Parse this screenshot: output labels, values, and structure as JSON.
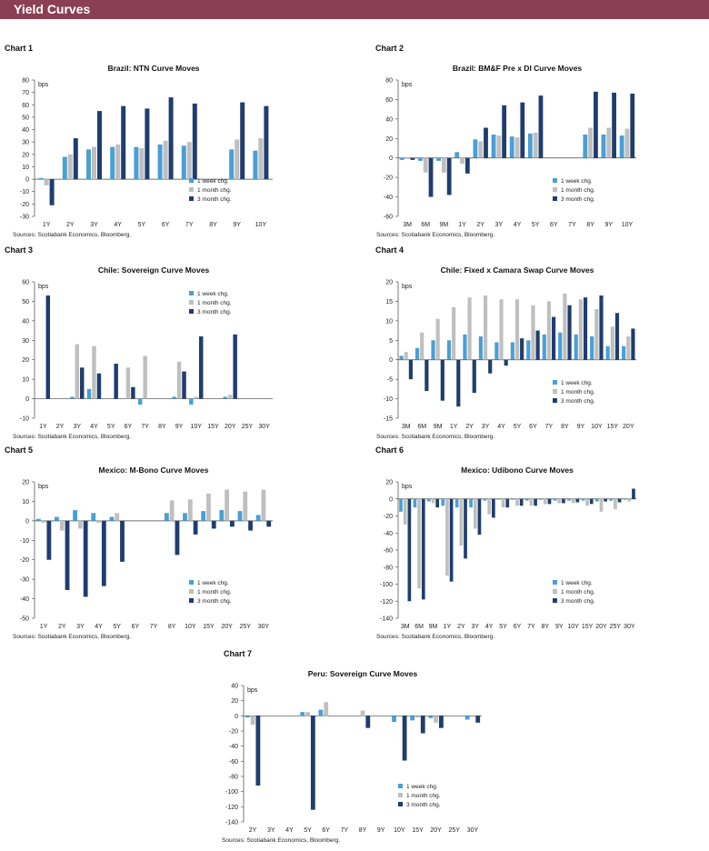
{
  "page": {
    "title": "Yield Curves"
  },
  "charts": [
    {
      "label": "Chart 1"
    },
    {
      "label": "Chart 2"
    },
    {
      "label": "Chart 3"
    },
    {
      "label": "Chart 4"
    },
    {
      "label": "Chart 5"
    },
    {
      "label": "Chart 6"
    },
    {
      "label": "Chart 7"
    }
  ],
  "colors": {
    "week": "#4a9fd4",
    "month": "#bfbfbf",
    "three_month": "#1f3d6e",
    "banner": "#8b3f55"
  },
  "chart_data": [
    {
      "type": "bar",
      "title": "Brazil: NTN Curve Moves",
      "ylabel": "bps",
      "categories": [
        "1Y",
        "2Y",
        "3Y",
        "4Y",
        "5Y",
        "6Y",
        "7Y",
        "8Y",
        "9Y",
        "10Y"
      ],
      "ylim": [
        -30,
        80
      ],
      "yticks": [
        -30,
        -20,
        -10,
        0,
        10,
        20,
        30,
        40,
        50,
        60,
        70,
        80
      ],
      "series": [
        {
          "name": "1 week chg.",
          "values": [
            1,
            18,
            24,
            26,
            26,
            28,
            27,
            null,
            24,
            23
          ]
        },
        {
          "name": "1 month chg.",
          "values": [
            -5,
            20,
            26,
            28,
            25,
            31,
            30,
            null,
            32,
            33
          ]
        },
        {
          "name": "3 month chg.",
          "values": [
            -21,
            33,
            55,
            59,
            57,
            66,
            61,
            null,
            62,
            59
          ]
        }
      ],
      "legend": "bottom-right",
      "source": "Sources: Scotiabank Economics, Bloomberg."
    },
    {
      "type": "bar",
      "title": "Brazil: BM&F Pre x DI Curve Moves",
      "ylabel": "bps",
      "categories": [
        "3M",
        "6M",
        "9M",
        "1Y",
        "2Y",
        "3Y",
        "4Y",
        "5Y",
        "6Y",
        "7Y",
        "8Y",
        "9Y",
        "10Y"
      ],
      "ylim": [
        -60,
        80
      ],
      "yticks": [
        -60,
        -40,
        -20,
        0,
        20,
        40,
        60,
        80
      ],
      "series": [
        {
          "name": "1 week chg.",
          "values": [
            -2,
            -3,
            -3,
            6,
            19,
            24,
            22,
            25,
            null,
            null,
            24,
            24,
            23
          ]
        },
        {
          "name": "1 month chg.",
          "values": [
            -1,
            -15,
            -15,
            -6,
            17,
            23,
            21,
            26,
            null,
            null,
            31,
            31,
            30
          ]
        },
        {
          "name": "3 month chg.",
          "values": [
            -2,
            -40,
            -38,
            -16,
            31,
            54,
            57,
            64,
            null,
            null,
            68,
            67,
            66
          ]
        }
      ],
      "legend": "bottom-right",
      "source": "Sources: Scotiabank Economics, Bloomberg."
    },
    {
      "type": "bar",
      "title": "Chile: Sovereign Curve Moves",
      "ylabel": "bps",
      "categories": [
        "1Y",
        "2Y",
        "3Y",
        "4Y",
        "5Y",
        "6Y",
        "7Y",
        "8Y",
        "9Y",
        "10Y",
        "15Y",
        "20Y",
        "25Y",
        "30Y"
      ],
      "ylim": [
        -10,
        60
      ],
      "yticks": [
        -10,
        0,
        10,
        20,
        30,
        40,
        50,
        60
      ],
      "series": [
        {
          "name": "1 week chg.",
          "values": [
            null,
            null,
            1,
            5,
            null,
            null,
            -3,
            null,
            1,
            -3,
            null,
            1,
            null,
            null
          ]
        },
        {
          "name": "1 month chg.",
          "values": [
            null,
            null,
            28,
            27,
            null,
            16,
            22,
            null,
            19,
            1,
            null,
            2,
            null,
            null
          ]
        },
        {
          "name": "3 month chg.",
          "values": [
            53,
            null,
            16,
            13,
            18,
            6,
            null,
            null,
            14,
            32,
            null,
            33,
            null,
            null
          ]
        }
      ],
      "legend": "top-right",
      "source": "Sources: Scotiabank Economics, Bloomberg."
    },
    {
      "type": "bar",
      "title": "Chile: Fixed x Camara Swap Curve Moves",
      "ylabel": "bps",
      "categories": [
        "3M",
        "6M",
        "9M",
        "1Y",
        "2Y",
        "3Y",
        "4Y",
        "5Y",
        "6Y",
        "7Y",
        "8Y",
        "9Y",
        "10Y",
        "15Y",
        "20Y"
      ],
      "ylim": [
        -15,
        20
      ],
      "yticks": [
        -15,
        -10,
        -5,
        0,
        5,
        10,
        15,
        20
      ],
      "series": [
        {
          "name": "1 week chg.",
          "values": [
            1,
            3,
            5,
            5,
            6.5,
            6,
            4.5,
            4.5,
            5,
            6.5,
            7,
            6.5,
            6,
            3.5,
            3.5
          ]
        },
        {
          "name": "1 month chg.",
          "values": [
            2,
            7,
            10.5,
            13.5,
            16,
            16.5,
            15.5,
            15.5,
            14,
            15,
            17,
            15.5,
            13,
            8.5,
            6
          ]
        },
        {
          "name": "3 month chg.",
          "values": [
            -5,
            -8,
            -10.5,
            -12,
            -8.5,
            -3.5,
            -1.5,
            5.5,
            7.5,
            11,
            14,
            16,
            16.5,
            12,
            8
          ]
        }
      ],
      "legend": "bottom-right",
      "source": "Sources: Scotiabank Economics, Bloomberg."
    },
    {
      "type": "bar",
      "title": "Mexico: M-Bono Curve Moves",
      "ylabel": "bps",
      "categories": [
        "1Y",
        "2Y",
        "3Y",
        "4Y",
        "5Y",
        "6Y",
        "7Y",
        "8Y",
        "10Y",
        "15Y",
        "20Y",
        "25Y",
        "30Y"
      ],
      "ylim": [
        -50,
        20
      ],
      "yticks": [
        -50,
        -40,
        -30,
        -20,
        -10,
        0,
        10,
        20
      ],
      "series": [
        {
          "name": "1 week chg.",
          "values": [
            1,
            2,
            5.5,
            4,
            2,
            null,
            null,
            4,
            4,
            5,
            5.5,
            5,
            3
          ]
        },
        {
          "name": "1 month chg.",
          "values": [
            -1,
            -5,
            -4,
            -1,
            4,
            null,
            null,
            10.5,
            11,
            14,
            16,
            15,
            16
          ]
        },
        {
          "name": "3 month chg.",
          "values": [
            -20,
            -35.5,
            -39,
            -33.5,
            -21,
            null,
            null,
            -17.5,
            -7,
            -4,
            -3,
            -5,
            -3
          ]
        }
      ],
      "legend": "bottom-right",
      "source": "Sources: Scotiabank Economics, Bloomberg."
    },
    {
      "type": "bar",
      "title": "Mexico: Udibono Curve Moves",
      "ylabel": "bps",
      "categories": [
        "3M",
        "6M",
        "9M",
        "1Y",
        "2Y",
        "3Y",
        "4Y",
        "5Y",
        "6Y",
        "7Y",
        "8Y",
        "9Y",
        "10Y",
        "15Y",
        "20Y",
        "25Y",
        "30Y"
      ],
      "ylim": [
        -140,
        20
      ],
      "yticks": [
        -140,
        -120,
        -100,
        -80,
        -60,
        -40,
        -20,
        0,
        20
      ],
      "series": [
        {
          "name": "1 week chg.",
          "values": [
            -15,
            -10,
            -3,
            -8,
            -10,
            -10,
            -2,
            -1,
            -1,
            -2,
            -1,
            -2,
            -2,
            -2,
            -3,
            -2,
            -1
          ]
        },
        {
          "name": "1 month chg.",
          "values": [
            -30,
            -105,
            -5,
            -90,
            -55,
            -35,
            -18,
            -10,
            -8,
            -8,
            -6,
            -5,
            -5,
            -8,
            -15,
            -12,
            -3
          ]
        },
        {
          "name": "3 month chg.",
          "values": [
            -120,
            -118,
            -10,
            -97,
            -70,
            -42,
            -22,
            -10,
            -8,
            -8,
            -6,
            -5,
            -4,
            -6,
            -3,
            -4,
            12
          ]
        }
      ],
      "legend": "bottom-right",
      "source": "Sources: Scotiabank Economics, Bloomberg."
    },
    {
      "type": "bar",
      "title": "Peru: Sovereign Curve Moves",
      "ylabel": "bps",
      "categories": [
        "2Y",
        "3Y",
        "4Y",
        "5Y",
        "6Y",
        "7Y",
        "8Y",
        "9Y",
        "10Y",
        "15Y",
        "20Y",
        "25Y",
        "30Y"
      ],
      "ylim": [
        -140,
        40
      ],
      "yticks": [
        -140,
        -120,
        -100,
        -80,
        -60,
        -40,
        -20,
        0,
        20,
        40
      ],
      "series": [
        {
          "name": "1 week chg.",
          "values": [
            -2,
            null,
            null,
            5,
            8,
            null,
            null,
            null,
            -8,
            -6,
            -3,
            null,
            -5
          ]
        },
        {
          "name": "1 month chg.",
          "values": [
            -12,
            null,
            null,
            5,
            18,
            null,
            7,
            null,
            null,
            -2,
            -9,
            null,
            null
          ]
        },
        {
          "name": "3 month chg.",
          "values": [
            -92,
            null,
            null,
            -124,
            null,
            null,
            -16,
            null,
            -59,
            -23,
            -16,
            null,
            -9
          ]
        }
      ],
      "legend": "bottom-right",
      "source": "Sources: Scotiabank Economics, Bloomberg."
    }
  ]
}
